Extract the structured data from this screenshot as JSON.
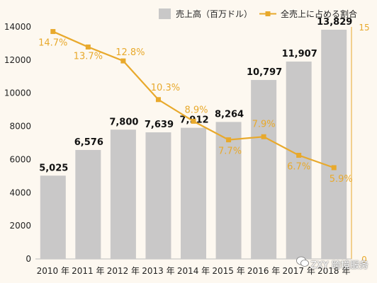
{
  "chart_data": {
    "type": "bar+line",
    "categories": [
      "2010 年",
      "2011 年",
      "2012 年",
      "2013 年",
      "2014 年",
      "2015 年",
      "2016 年",
      "2017 年",
      "2018 年"
    ],
    "series": [
      {
        "name": "売上高（百万ドル）",
        "type": "bar",
        "axis": "left",
        "color": "#c9c8c8",
        "values": [
          5025,
          6576,
          7800,
          7639,
          7912,
          8264,
          10797,
          11907,
          13829
        ],
        "labels": [
          "5,025",
          "6,576",
          "7,800",
          "7,639",
          "7,912",
          "8,264",
          "10,797",
          "11,907",
          "13,829"
        ]
      },
      {
        "name": "全売上に占める割合",
        "type": "line",
        "axis": "right",
        "color": "#e8a92c",
        "values": [
          14.7,
          13.7,
          12.8,
          10.3,
          8.9,
          7.7,
          7.9,
          6.7,
          5.9
        ],
        "labels": [
          "14.7%",
          "13.7%",
          "12.8%",
          "10.3%",
          "8.9%",
          "7.7%",
          "7.9%",
          "6.7%",
          "5.9%"
        ]
      }
    ],
    "y_left": {
      "ylim": [
        0,
        14000
      ],
      "ticks": [
        "0",
        "2000",
        "4000",
        "6000",
        "8000",
        "10000",
        "12000",
        "14000"
      ]
    },
    "y_right": {
      "ylim": [
        0,
        15
      ],
      "ticks": [
        "0",
        "15"
      ]
    },
    "legend_position": "top-right"
  },
  "watermark": {
    "text": "ZXY 跨境服务",
    "icon": "wechat-icon"
  }
}
